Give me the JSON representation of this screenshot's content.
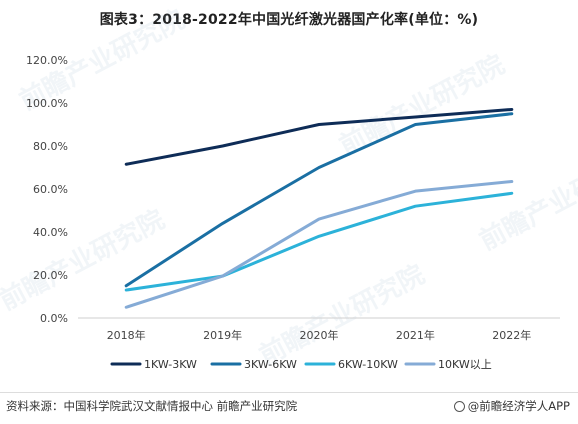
{
  "chart_data": {
    "type": "line",
    "title": "图表3：2018-2022年中国光纤激光器国产化率(单位：%)",
    "categories": [
      "2018年",
      "2019年",
      "2020年",
      "2021年",
      "2022年"
    ],
    "y_ticks": [
      "0.0%",
      "20.0%",
      "40.0%",
      "60.0%",
      "80.0%",
      "100.0%",
      "120.0%"
    ],
    "ylim": [
      0,
      120
    ],
    "grid": false,
    "legend_position": "bottom",
    "series": [
      {
        "name": "1KW-3KW",
        "color": "#0e2c57",
        "values": [
          71.5,
          80,
          90,
          93.5,
          97
        ]
      },
      {
        "name": "3KW-6KW",
        "color": "#1a6fa3",
        "values": [
          15,
          44,
          70,
          90,
          95
        ]
      },
      {
        "name": "6KW-10KW",
        "color": "#2cb2d9",
        "values": [
          13,
          19.5,
          38,
          52,
          58
        ]
      },
      {
        "name": "10KW以上",
        "color": "#85abd6",
        "values": [
          5,
          19.5,
          46,
          59,
          63.5
        ]
      }
    ]
  },
  "footer": {
    "source": "资料来源：中国科学院武汉文献情报中心 前瞻产业研究院",
    "brand": "@前瞻经济学人APP"
  },
  "watermark_text": "前瞻产业研究院"
}
